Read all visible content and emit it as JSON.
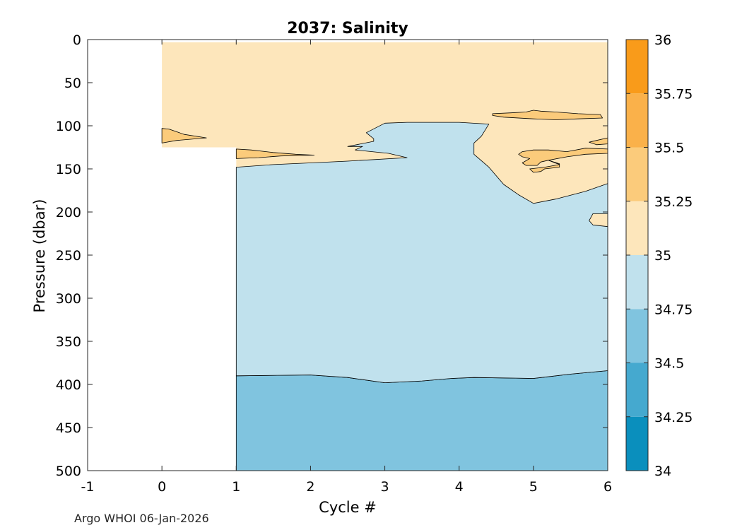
{
  "chart_data": {
    "type": "filled-contour",
    "title": "2037:  Salinity",
    "xlabel": "Cycle #",
    "ylabel": "Pressure (dbar)",
    "xlim": [
      -1,
      6
    ],
    "ylim": [
      0,
      500
    ],
    "y_reversed": true,
    "xticks": [
      -1,
      0,
      1,
      2,
      3,
      4,
      5,
      6
    ],
    "yticks": [
      0,
      50,
      100,
      150,
      200,
      250,
      300,
      350,
      400,
      450,
      500
    ],
    "colorbar": {
      "range": [
        34,
        36
      ],
      "ticks": [
        34,
        34.25,
        34.5,
        34.75,
        35,
        35.25,
        35.5,
        35.75,
        36
      ],
      "tick_labels": [
        "34",
        "34.25",
        "34.5",
        "34.75",
        "35",
        "35.25",
        "35.5",
        "35.75",
        "36"
      ],
      "bands": [
        {
          "from": 34.0,
          "to": 34.25,
          "color": "#0a8fbd"
        },
        {
          "from": 34.25,
          "to": 34.5,
          "color": "#45a9cf"
        },
        {
          "from": 34.5,
          "to": 34.75,
          "color": "#80c4df"
        },
        {
          "from": 34.75,
          "to": 35.0,
          "color": "#c0e1ed"
        },
        {
          "from": 35.0,
          "to": 35.25,
          "color": "#fde6bb"
        },
        {
          "from": 35.25,
          "to": 35.5,
          "color": "#fbcb7b"
        },
        {
          "from": 35.5,
          "to": 35.75,
          "color": "#fab14a"
        },
        {
          "from": 35.75,
          "to": 36.0,
          "color": "#f99b1a"
        }
      ]
    },
    "data_extent": {
      "x_start": 0,
      "x_end": 6,
      "p_min": 3
    },
    "profile_bottom": [
      [
        0,
        125
      ],
      [
        1,
        125
      ]
    ],
    "regions": [
      {
        "name": "fresh-deep",
        "band": "34.5-34.75",
        "polygon": [
          [
            1,
            390
          ],
          [
            2,
            389
          ],
          [
            2.5,
            392
          ],
          [
            3,
            398
          ],
          [
            3.5,
            396
          ],
          [
            3.9,
            393
          ],
          [
            4.2,
            392
          ],
          [
            5,
            393
          ],
          [
            5.5,
            388
          ],
          [
            6,
            384
          ],
          [
            6,
            500
          ],
          [
            1,
            500
          ]
        ]
      },
      {
        "name": "intermediate",
        "band": "34.75-35",
        "polygon": [
          [
            1,
            148
          ],
          [
            1.5,
            145
          ],
          [
            2,
            143
          ],
          [
            2.5,
            141
          ],
          [
            3.3,
            137
          ],
          [
            3.05,
            132
          ],
          [
            2.6,
            128
          ],
          [
            2.7,
            124
          ],
          [
            2.5,
            124
          ],
          [
            2.85,
            118
          ],
          [
            2.85,
            115
          ],
          [
            2.75,
            108
          ],
          [
            3,
            97
          ],
          [
            3.3,
            96
          ],
          [
            3.6,
            96
          ],
          [
            4,
            96
          ],
          [
            4.4,
            98
          ],
          [
            4.3,
            112
          ],
          [
            4.2,
            120
          ],
          [
            4.2,
            133
          ],
          [
            4.4,
            148
          ],
          [
            4.6,
            168
          ],
          [
            4.8,
            180
          ],
          [
            5,
            190
          ],
          [
            5.3,
            185
          ],
          [
            5.7,
            176
          ],
          [
            6,
            167
          ],
          [
            6,
            202
          ],
          [
            5.8,
            202
          ],
          [
            5.75,
            210
          ],
          [
            5.8,
            215
          ],
          [
            6,
            217
          ],
          [
            6,
            384
          ],
          [
            5.5,
            388
          ],
          [
            5,
            393
          ],
          [
            4.2,
            392
          ],
          [
            3.9,
            393
          ],
          [
            3.5,
            396
          ],
          [
            3,
            398
          ],
          [
            2.5,
            392
          ],
          [
            2,
            389
          ],
          [
            1,
            390
          ]
        ]
      },
      {
        "name": "salty-patch-a",
        "band": "35.25-35.5",
        "polygon": [
          [
            0,
            103
          ],
          [
            0.1,
            104
          ],
          [
            0.3,
            110
          ],
          [
            0.6,
            114
          ],
          [
            0.2,
            117
          ],
          [
            0,
            120
          ]
        ]
      },
      {
        "name": "salty-patch-b",
        "band": "35.25-35.5",
        "polygon": [
          [
            1,
            127
          ],
          [
            1.2,
            128
          ],
          [
            1.5,
            131
          ],
          [
            1.8,
            133
          ],
          [
            2.05,
            134
          ],
          [
            1.6,
            135
          ],
          [
            1.3,
            137
          ],
          [
            1,
            138
          ]
        ]
      },
      {
        "name": "salty-patch-c",
        "band": "35.25-35.5",
        "polygon": [
          [
            4.45,
            86
          ],
          [
            4.7,
            85
          ],
          [
            4.9,
            84
          ],
          [
            5,
            82
          ],
          [
            5.1,
            83
          ],
          [
            5.3,
            84
          ],
          [
            5.6,
            86
          ],
          [
            5.9,
            87
          ],
          [
            5.93,
            91
          ],
          [
            5.6,
            92
          ],
          [
            5.3,
            93
          ],
          [
            5,
            92
          ],
          [
            4.6,
            90
          ],
          [
            4.45,
            88
          ]
        ]
      },
      {
        "name": "salty-patch-d",
        "band": "35.25-35.5",
        "polygon": [
          [
            6,
            114
          ],
          [
            5.85,
            117
          ],
          [
            5.75,
            119
          ],
          [
            5.85,
            122
          ],
          [
            6,
            121
          ]
        ]
      },
      {
        "name": "salty-patch-e",
        "band": "35.25-35.5",
        "polygon": [
          [
            4.85,
            130
          ],
          [
            4.8,
            133
          ],
          [
            4.85,
            136
          ],
          [
            4.95,
            138
          ],
          [
            4.85,
            143
          ],
          [
            4.9,
            146
          ],
          [
            5.05,
            146
          ],
          [
            5.1,
            142
          ],
          [
            5.2,
            140
          ],
          [
            5.35,
            145
          ],
          [
            5.15,
            148
          ],
          [
            4.95,
            150
          ],
          [
            5,
            154
          ],
          [
            5.1,
            153
          ],
          [
            5.15,
            150
          ],
          [
            5.35,
            148
          ],
          [
            5.35,
            144
          ],
          [
            5.2,
            140
          ],
          [
            5.45,
            136
          ],
          [
            5.7,
            133
          ],
          [
            6,
            132
          ],
          [
            6,
            127
          ],
          [
            5.7,
            126
          ],
          [
            5.45,
            130
          ],
          [
            5.2,
            128
          ],
          [
            5,
            128
          ]
        ]
      }
    ]
  },
  "footer": "Argo WHOI 06-Jan-2026"
}
